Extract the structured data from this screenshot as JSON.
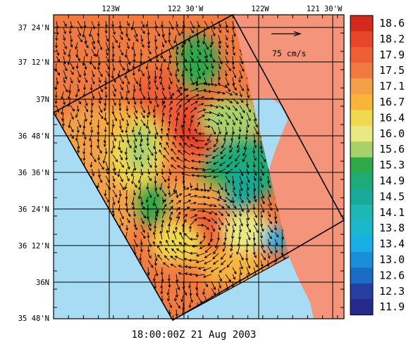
{
  "timestamp": "18:00:00Z  21 Aug 2003",
  "lon_labels": [
    "123W",
    "122 30'W",
    "122W",
    "121 30'W"
  ],
  "lat_labels": [
    "37 24'N",
    "37 12'N",
    "37N",
    "36 48'N",
    "36 36'N",
    "36 24'N",
    "36 12'N",
    "36N",
    "35 48'N"
  ],
  "scale_vector_label": "75 cm/s",
  "colorbar": {
    "labels": [
      "18.6",
      "18.2",
      "17.9",
      "17.5",
      "17.1",
      "16.7",
      "16.4",
      "16.0",
      "15.6",
      "15.3",
      "14.9",
      "14.5",
      "14.1",
      "13.8",
      "13.4",
      "13.0",
      "12.6",
      "12.3",
      "11.9"
    ],
    "colors": [
      "#d42a1e",
      "#e8452a",
      "#ee5f35",
      "#f07a3f",
      "#f4a04a",
      "#fab43c",
      "#f1d94f",
      "#e8e982",
      "#a9d16a",
      "#2fa94a",
      "#1eab77",
      "#19aa99",
      "#1db7b6",
      "#19b8cc",
      "#18aee6",
      "#1a8fd9",
      "#1b6cc4",
      "#253ea0",
      "#262b8a"
    ]
  },
  "map_colors": {
    "ocean": "#a8dcf5",
    "land": "#f4957b",
    "grid": "#000000"
  }
}
